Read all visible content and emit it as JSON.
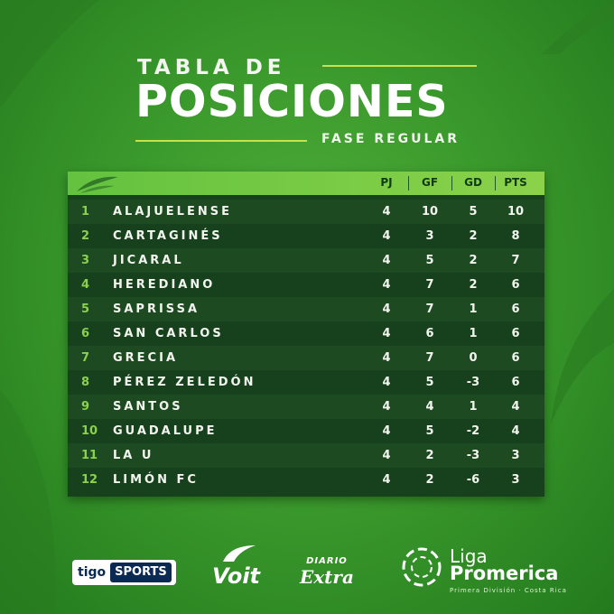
{
  "title": {
    "line1": "TABLA DE",
    "line2": "POSICIONES",
    "subtitle": "FASE REGULAR"
  },
  "table": {
    "headers": [
      "PJ",
      "GF",
      "GD",
      "PTS"
    ],
    "rows": [
      {
        "pos": "1",
        "team": "ALAJUELENSE",
        "pj": "4",
        "gf": "10",
        "gd": "5",
        "pts": "10"
      },
      {
        "pos": "2",
        "team": "CARTAGINÉS",
        "pj": "4",
        "gf": "3",
        "gd": "2",
        "pts": "8"
      },
      {
        "pos": "3",
        "team": "JICARAL",
        "pj": "4",
        "gf": "5",
        "gd": "2",
        "pts": "7"
      },
      {
        "pos": "4",
        "team": "HEREDIANO",
        "pj": "4",
        "gf": "7",
        "gd": "2",
        "pts": "6"
      },
      {
        "pos": "5",
        "team": "SAPRISSA",
        "pj": "4",
        "gf": "7",
        "gd": "1",
        "pts": "6"
      },
      {
        "pos": "6",
        "team": "SAN CARLOS",
        "pj": "4",
        "gf": "6",
        "gd": "1",
        "pts": "6"
      },
      {
        "pos": "7",
        "team": "GRECIA",
        "pj": "4",
        "gf": "7",
        "gd": "0",
        "pts": "6"
      },
      {
        "pos": "8",
        "team": "PÉREZ ZELEDÓN",
        "pj": "4",
        "gf": "5",
        "gd": "-3",
        "pts": "6"
      },
      {
        "pos": "9",
        "team": "SANTOS",
        "pj": "4",
        "gf": "4",
        "gd": "1",
        "pts": "4"
      },
      {
        "pos": "10",
        "team": "GUADALUPE",
        "pj": "4",
        "gf": "5",
        "gd": "-2",
        "pts": "4"
      },
      {
        "pos": "11",
        "team": "LA U",
        "pj": "4",
        "gf": "2",
        "gd": "-3",
        "pts": "3"
      },
      {
        "pos": "12",
        "team": "LIMÓN FC",
        "pj": "4",
        "gf": "2",
        "gd": "-6",
        "pts": "3"
      }
    ]
  },
  "sponsors": {
    "tigo_a": "tigo",
    "tigo_b": "SPORTS",
    "voit": "Voit",
    "diario_a": "DIARIO",
    "diario_b": "Extra",
    "liga_a": "Liga",
    "liga_b": "Promerica",
    "liga_c": "Primera División · Costa Rica"
  },
  "colors": {
    "background": "#3b9a2c",
    "header": "#63c23f",
    "table": "#17411c",
    "accent": "#c7e24c",
    "position": "#8bd24a"
  }
}
